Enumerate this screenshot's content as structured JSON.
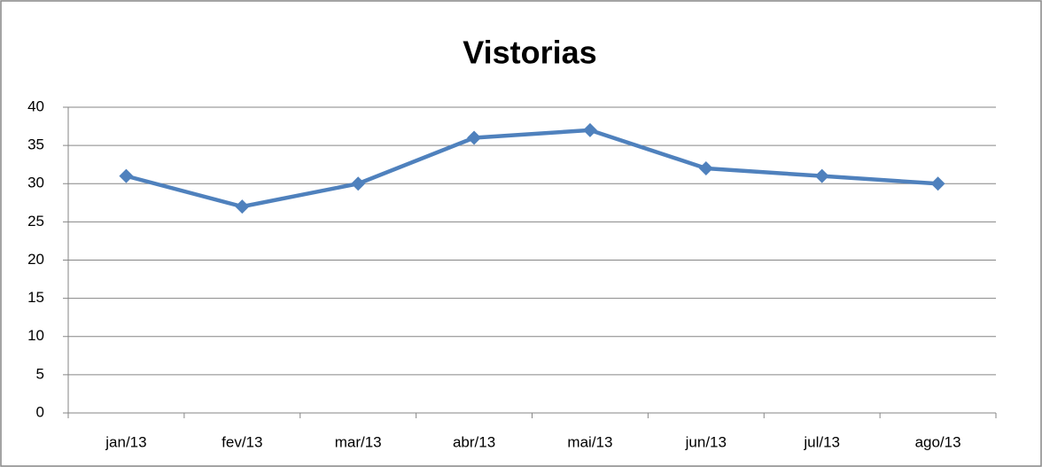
{
  "chart_data": {
    "type": "line",
    "title": "Vistorias",
    "categories": [
      "jan/13",
      "fev/13",
      "mar/13",
      "abr/13",
      "mai/13",
      "jun/13",
      "jul/13",
      "ago/13"
    ],
    "values": [
      31,
      27,
      30,
      36,
      37,
      32,
      31,
      30
    ],
    "color": "#4f81bd",
    "ylim": [
      0,
      40
    ],
    "yticks": [
      0,
      5,
      10,
      15,
      20,
      25,
      30,
      35,
      40
    ],
    "grid": true
  }
}
